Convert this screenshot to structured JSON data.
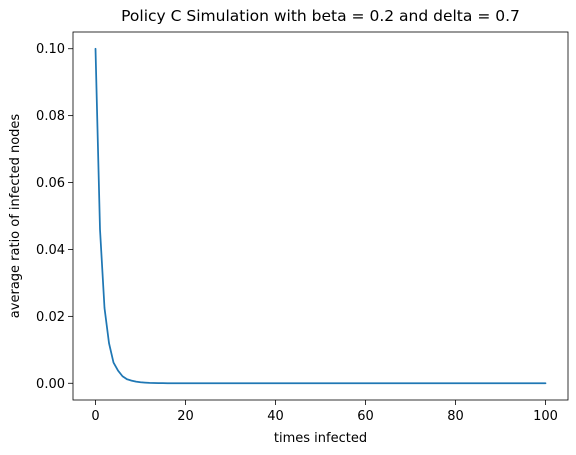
{
  "chart_data": {
    "type": "line",
    "title": "Policy C Simulation with beta = 0.2 and delta = 0.7",
    "xlabel": "times infected",
    "ylabel": "average ratio of infected nodes",
    "xlim": [
      -5,
      105
    ],
    "ylim": [
      -0.005,
      0.105
    ],
    "xticks": [
      0,
      20,
      40,
      60,
      80,
      100
    ],
    "yticks": [
      0.0,
      0.02,
      0.04,
      0.06,
      0.08,
      0.1
    ],
    "xtick_labels": [
      "0",
      "20",
      "40",
      "60",
      "80",
      "100"
    ],
    "ytick_labels": [
      "0.00",
      "0.02",
      "0.04",
      "0.06",
      "0.08",
      "0.10"
    ],
    "grid": false,
    "legend": "none",
    "series": [
      {
        "color": "#1f77b4",
        "x": [
          0,
          1,
          2,
          3,
          4,
          5,
          6,
          7,
          8,
          9,
          10,
          11,
          12,
          13,
          14,
          15,
          16,
          17,
          18,
          19,
          20,
          25,
          30,
          40,
          50,
          60,
          70,
          80,
          90,
          100
        ],
        "y": [
          0.1,
          0.046,
          0.0225,
          0.012,
          0.0062,
          0.0038,
          0.0021,
          0.0012,
          0.0008,
          0.0005,
          0.0003,
          0.0002,
          0.00012,
          8e-05,
          5e-05,
          3e-05,
          2e-05,
          1e-05,
          1e-05,
          0.0,
          0.0,
          0.0,
          0.0,
          0.0,
          0.0,
          0.0,
          0.0,
          0.0,
          0.0,
          0.0
        ]
      }
    ]
  }
}
